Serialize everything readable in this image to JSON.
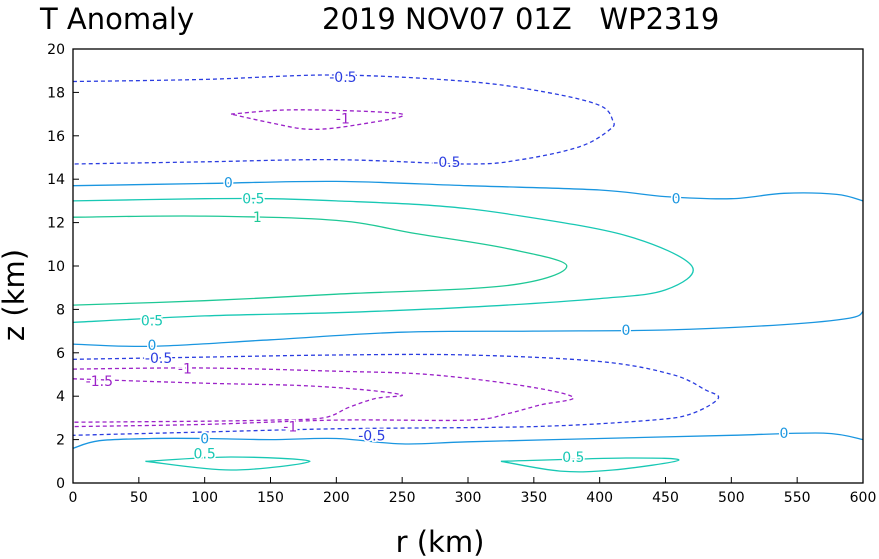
{
  "chart_data": {
    "type": "contour",
    "title_left": "T Anomaly",
    "title_right": "2019 NOV07 01Z   WP2319",
    "xlabel": "r (km)",
    "ylabel": "z (km)",
    "xlim": [
      0,
      600
    ],
    "ylim": [
      0,
      20
    ],
    "xticks": [
      0,
      50,
      100,
      150,
      200,
      250,
      300,
      350,
      400,
      450,
      500,
      550,
      600
    ],
    "yticks": [
      0,
      2,
      4,
      6,
      8,
      10,
      12,
      14,
      16,
      18,
      20
    ],
    "level_colors": {
      "-1.5": "#9b22c8",
      "-1": "#9b22c8",
      "-0.5": "#2a3ce0",
      "0": "#1a96e0",
      "0.5": "#18c8b4",
      "1": "#1ec896"
    },
    "contours": [
      {
        "level": -0.5,
        "dashed": true,
        "points": [
          [
            0,
            18.5
          ],
          [
            100,
            18.6
          ],
          [
            200,
            18.8
          ],
          [
            300,
            18.5
          ],
          [
            360,
            18.0
          ],
          [
            400,
            17.4
          ],
          [
            410,
            16.7
          ],
          [
            408,
            16.3
          ],
          [
            385,
            15.5
          ],
          [
            340,
            14.9
          ],
          [
            300,
            14.7
          ],
          [
            200,
            14.9
          ],
          [
            100,
            14.8
          ],
          [
            0,
            14.7
          ]
        ]
      },
      {
        "level": -1,
        "dashed": true,
        "points": [
          [
            120,
            17.0
          ],
          [
            170,
            17.2
          ],
          [
            250,
            17.0
          ],
          [
            215,
            16.5
          ],
          [
            180,
            16.3
          ],
          [
            150,
            16.6
          ],
          [
            120,
            17.0
          ]
        ]
      },
      {
        "level": 0,
        "dashed": false,
        "points": [
          [
            0,
            13.7
          ],
          [
            100,
            13.8
          ],
          [
            200,
            13.9
          ],
          [
            300,
            13.7
          ],
          [
            400,
            13.5
          ],
          [
            450,
            13.2
          ],
          [
            500,
            13.1
          ],
          [
            540,
            13.35
          ],
          [
            580,
            13.3
          ],
          [
            600,
            13.0
          ]
        ]
      },
      {
        "level": 0.5,
        "dashed": false,
        "points": [
          [
            0,
            13.0
          ],
          [
            100,
            13.1
          ],
          [
            150,
            13.1
          ],
          [
            200,
            13.0
          ],
          [
            270,
            12.8
          ],
          [
            330,
            12.4
          ],
          [
            420,
            11.4
          ],
          [
            470,
            10.0
          ],
          [
            450,
            8.9
          ],
          [
            400,
            8.5
          ],
          [
            300,
            8.1
          ],
          [
            200,
            7.85
          ],
          [
            100,
            7.7
          ],
          [
            0,
            7.4
          ]
        ]
      },
      {
        "level": 1,
        "dashed": false,
        "points": [
          [
            0,
            12.25
          ],
          [
            100,
            12.3
          ],
          [
            200,
            12.1
          ],
          [
            260,
            11.5
          ],
          [
            330,
            10.8
          ],
          [
            375,
            10.0
          ],
          [
            330,
            9.1
          ],
          [
            200,
            8.7
          ],
          [
            100,
            8.4
          ],
          [
            0,
            8.2
          ]
        ]
      },
      {
        "level": 0,
        "dashed": false,
        "points": [
          [
            0,
            6.4
          ],
          [
            60,
            6.3
          ],
          [
            150,
            6.6
          ],
          [
            250,
            6.95
          ],
          [
            350,
            7.0
          ],
          [
            450,
            7.05
          ],
          [
            540,
            7.3
          ],
          [
            590,
            7.6
          ],
          [
            600,
            7.9
          ]
        ]
      },
      {
        "level": -0.5,
        "dashed": true,
        "points": [
          [
            0,
            5.7
          ],
          [
            100,
            5.8
          ],
          [
            200,
            5.9
          ],
          [
            300,
            5.9
          ],
          [
            400,
            5.6
          ],
          [
            455,
            5.0
          ],
          [
            480,
            4.3
          ],
          [
            490,
            3.9
          ],
          [
            470,
            3.2
          ],
          [
            440,
            2.9
          ],
          [
            350,
            2.6
          ],
          [
            200,
            2.5
          ],
          [
            100,
            2.35
          ],
          [
            0,
            2.2
          ]
        ]
      },
      {
        "level": -1,
        "dashed": true,
        "points": [
          [
            0,
            5.25
          ],
          [
            100,
            5.3
          ],
          [
            200,
            5.15
          ],
          [
            270,
            5.0
          ],
          [
            340,
            4.5
          ],
          [
            380,
            3.95
          ],
          [
            355,
            3.6
          ],
          [
            330,
            3.2
          ],
          [
            300,
            2.9
          ],
          [
            200,
            2.9
          ],
          [
            100,
            2.7
          ],
          [
            0,
            2.6
          ]
        ]
      },
      {
        "level": -1.5,
        "dashed": true,
        "points": [
          [
            0,
            4.8
          ],
          [
            100,
            4.6
          ],
          [
            170,
            4.5
          ],
          [
            220,
            4.3
          ],
          [
            250,
            4.05
          ],
          [
            230,
            3.9
          ],
          [
            210,
            3.5
          ],
          [
            190,
            3.0
          ],
          [
            150,
            2.9
          ],
          [
            100,
            2.85
          ],
          [
            0,
            2.8
          ]
        ]
      },
      {
        "level": 0,
        "dashed": false,
        "points": [
          [
            0,
            1.6
          ],
          [
            20,
            1.95
          ],
          [
            60,
            2.05
          ],
          [
            100,
            2.05
          ],
          [
            150,
            2.0
          ],
          [
            200,
            2.05
          ],
          [
            250,
            1.8
          ],
          [
            300,
            1.9
          ],
          [
            400,
            2.05
          ],
          [
            500,
            2.2
          ],
          [
            570,
            2.3
          ],
          [
            600,
            2.0
          ]
        ]
      },
      {
        "level": 0.5,
        "dashed": false,
        "points": [
          [
            55,
            1.0
          ],
          [
            120,
            1.2
          ],
          [
            180,
            1.0
          ],
          [
            120,
            0.6
          ],
          [
            55,
            1.0
          ]
        ]
      },
      {
        "level": 0.5,
        "dashed": false,
        "points": [
          [
            325,
            1.0
          ],
          [
            420,
            1.15
          ],
          [
            460,
            1.05
          ],
          [
            410,
            0.6
          ],
          [
            370,
            0.55
          ],
          [
            325,
            1.0
          ]
        ]
      }
    ],
    "labels": [
      {
        "text": "-0.5",
        "x": 205,
        "y": 18.7,
        "level": -0.5
      },
      {
        "text": "-1",
        "x": 205,
        "y": 16.8,
        "level": -1
      },
      {
        "text": "-0.5",
        "x": 284,
        "y": 14.8,
        "level": -0.5
      },
      {
        "text": "0",
        "x": 118,
        "y": 13.85,
        "level": 0
      },
      {
        "text": "0",
        "x": 458,
        "y": 13.1,
        "level": 0
      },
      {
        "text": "0.5",
        "x": 137,
        "y": 13.1,
        "level": 0.5
      },
      {
        "text": "1",
        "x": 140,
        "y": 12.25,
        "level": 1
      },
      {
        "text": "0.5",
        "x": 60,
        "y": 7.5,
        "level": 0.5
      },
      {
        "text": "0",
        "x": 60,
        "y": 6.35,
        "level": 0
      },
      {
        "text": "0",
        "x": 420,
        "y": 7.05,
        "level": 0
      },
      {
        "text": "-0.5",
        "x": 65,
        "y": 5.75,
        "level": -0.5
      },
      {
        "text": "-1",
        "x": 85,
        "y": 5.28,
        "level": -1
      },
      {
        "text": "-1.5",
        "x": 20,
        "y": 4.7,
        "level": -1.5
      },
      {
        "text": "-1",
        "x": 165,
        "y": 2.6,
        "level": -1
      },
      {
        "text": "-0.5",
        "x": 227,
        "y": 2.2,
        "level": -0.5
      },
      {
        "text": "0",
        "x": 100,
        "y": 2.05,
        "level": 0
      },
      {
        "text": "0",
        "x": 540,
        "y": 2.3,
        "level": 0
      },
      {
        "text": "0.5",
        "x": 100,
        "y": 1.35,
        "level": 0.5
      },
      {
        "text": "0.5",
        "x": 380,
        "y": 1.2,
        "level": 0.5
      }
    ]
  }
}
